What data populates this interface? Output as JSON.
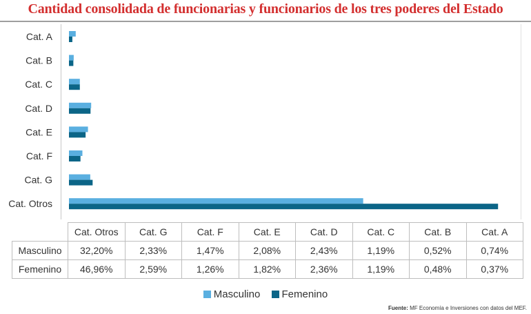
{
  "title": "Cantidad consolidada de funcionarias y funcionarios de los tres poderes del Estado",
  "colors": {
    "masculino": "#5aafe0",
    "femenino": "#0b6587",
    "title": "#d32f2f"
  },
  "chart_data": {
    "type": "bar",
    "orientation": "horizontal",
    "categories": [
      "Cat. A",
      "Cat. B",
      "Cat. C",
      "Cat. D",
      "Cat. E",
      "Cat. F",
      "Cat. G",
      "Cat. Otros"
    ],
    "series": [
      {
        "name": "Masculino",
        "values": [
          0.74,
          0.52,
          1.19,
          2.43,
          2.08,
          1.47,
          2.33,
          32.2
        ]
      },
      {
        "name": "Femenino",
        "values": [
          0.37,
          0.48,
          1.19,
          2.36,
          1.82,
          1.26,
          2.59,
          46.96
        ]
      }
    ],
    "unit": "%",
    "xlim": [
      0,
      50
    ],
    "grid": false,
    "legend_position": "bottom"
  },
  "table": {
    "headers": [
      "Cat. Otros",
      "Cat. G",
      "Cat. F",
      "Cat. E",
      "Cat. D",
      "Cat. C",
      "Cat. B",
      "Cat. A"
    ],
    "rows": [
      {
        "label": "Masculino",
        "values": [
          "32,20%",
          "2,33%",
          "1,47%",
          "2,08%",
          "2,43%",
          "1,19%",
          "0,52%",
          "0,74%"
        ]
      },
      {
        "label": "Femenino",
        "values": [
          "46,96%",
          "2,59%",
          "1,26%",
          "1,82%",
          "2,36%",
          "1,19%",
          "0,48%",
          "0,37%"
        ]
      }
    ]
  },
  "legend": {
    "masculino": "Masculino",
    "femenino": "Femenino"
  },
  "source": {
    "label": "Fuente:",
    "text": "MF Economía e Inversiones con datos del MEF."
  }
}
